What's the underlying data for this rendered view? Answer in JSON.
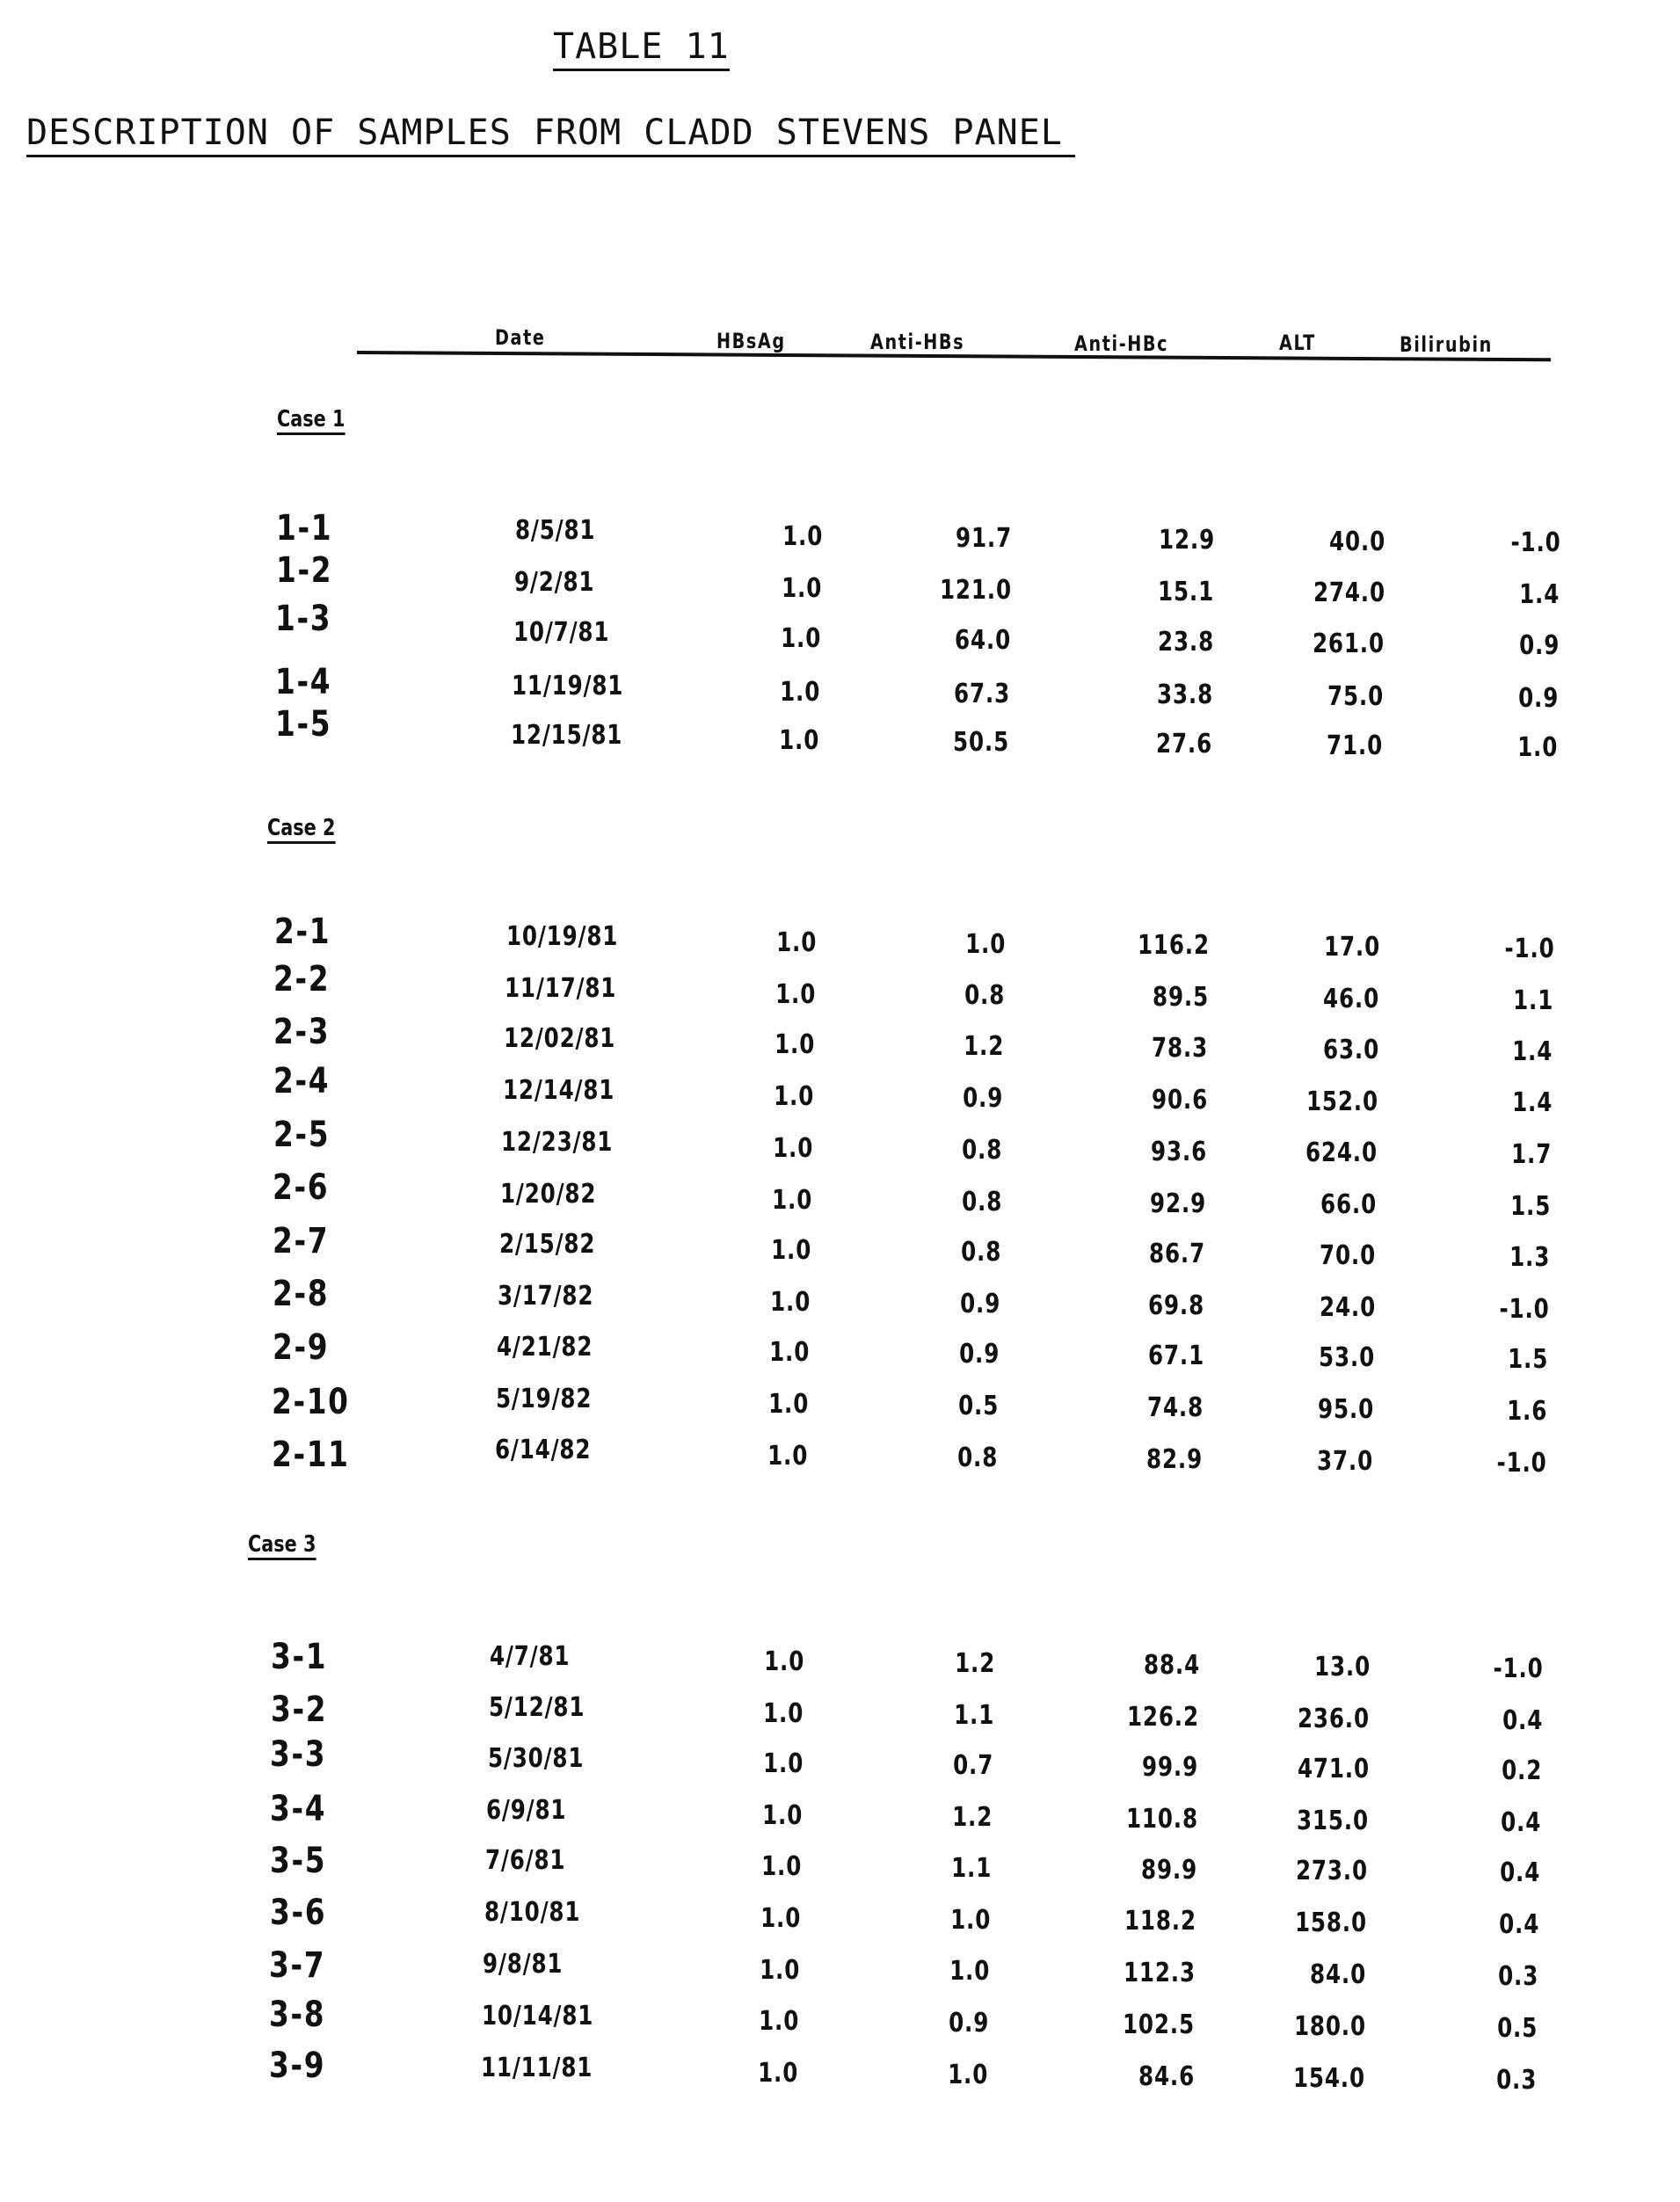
{
  "title": "TABLE 11",
  "subtitle": "DESCRIPTION OF SAMPLES FROM CLADD STEVENS PANEL",
  "columns": [
    "Date",
    "HBsAg",
    "Anti-HBs",
    "Anti-HBc",
    "ALT",
    "Bilirubin"
  ],
  "cases": [
    {
      "label": "Case 1",
      "rows": [
        {
          "id": "1-1",
          "date": "8/5/81",
          "hbsag": "1.0",
          "anti_hbs": "91.7",
          "anti_hbc": "12.9",
          "alt": "40.0",
          "bilirubin": "-1.0"
        },
        {
          "id": "1-2",
          "date": "9/2/81",
          "hbsag": "1.0",
          "anti_hbs": "121.0",
          "anti_hbc": "15.1",
          "alt": "274.0",
          "bilirubin": "1.4"
        },
        {
          "id": "1-3",
          "date": "10/7/81",
          "hbsag": "1.0",
          "anti_hbs": "64.0",
          "anti_hbc": "23.8",
          "alt": "261.0",
          "bilirubin": "0.9"
        },
        {
          "id": "1-4",
          "date": "11/19/81",
          "hbsag": "1.0",
          "anti_hbs": "67.3",
          "anti_hbc": "33.8",
          "alt": "75.0",
          "bilirubin": "0.9"
        },
        {
          "id": "1-5",
          "date": "12/15/81",
          "hbsag": "1.0",
          "anti_hbs": "50.5",
          "anti_hbc": "27.6",
          "alt": "71.0",
          "bilirubin": "1.0"
        }
      ]
    },
    {
      "label": "Case 2",
      "rows": [
        {
          "id": "2-1",
          "date": "10/19/81",
          "hbsag": "1.0",
          "anti_hbs": "1.0",
          "anti_hbc": "116.2",
          "alt": "17.0",
          "bilirubin": "-1.0"
        },
        {
          "id": "2-2",
          "date": "11/17/81",
          "hbsag": "1.0",
          "anti_hbs": "0.8",
          "anti_hbc": "89.5",
          "alt": "46.0",
          "bilirubin": "1.1"
        },
        {
          "id": "2-3",
          "date": "12/02/81",
          "hbsag": "1.0",
          "anti_hbs": "1.2",
          "anti_hbc": "78.3",
          "alt": "63.0",
          "bilirubin": "1.4"
        },
        {
          "id": "2-4",
          "date": "12/14/81",
          "hbsag": "1.0",
          "anti_hbs": "0.9",
          "anti_hbc": "90.6",
          "alt": "152.0",
          "bilirubin": "1.4"
        },
        {
          "id": "2-5",
          "date": "12/23/81",
          "hbsag": "1.0",
          "anti_hbs": "0.8",
          "anti_hbc": "93.6",
          "alt": "624.0",
          "bilirubin": "1.7"
        },
        {
          "id": "2-6",
          "date": "1/20/82",
          "hbsag": "1.0",
          "anti_hbs": "0.8",
          "anti_hbc": "92.9",
          "alt": "66.0",
          "bilirubin": "1.5"
        },
        {
          "id": "2-7",
          "date": "2/15/82",
          "hbsag": "1.0",
          "anti_hbs": "0.8",
          "anti_hbc": "86.7",
          "alt": "70.0",
          "bilirubin": "1.3"
        },
        {
          "id": "2-8",
          "date": "3/17/82",
          "hbsag": "1.0",
          "anti_hbs": "0.9",
          "anti_hbc": "69.8",
          "alt": "24.0",
          "bilirubin": "-1.0"
        },
        {
          "id": "2-9",
          "date": "4/21/82",
          "hbsag": "1.0",
          "anti_hbs": "0.9",
          "anti_hbc": "67.1",
          "alt": "53.0",
          "bilirubin": "1.5"
        },
        {
          "id": "2-10",
          "date": "5/19/82",
          "hbsag": "1.0",
          "anti_hbs": "0.5",
          "anti_hbc": "74.8",
          "alt": "95.0",
          "bilirubin": "1.6"
        },
        {
          "id": "2-11",
          "date": "6/14/82",
          "hbsag": "1.0",
          "anti_hbs": "0.8",
          "anti_hbc": "82.9",
          "alt": "37.0",
          "bilirubin": "-1.0"
        }
      ]
    },
    {
      "label": "Case 3",
      "rows": [
        {
          "id": "3-1",
          "date": "4/7/81",
          "hbsag": "1.0",
          "anti_hbs": "1.2",
          "anti_hbc": "88.4",
          "alt": "13.0",
          "bilirubin": "-1.0"
        },
        {
          "id": "3-2",
          "date": "5/12/81",
          "hbsag": "1.0",
          "anti_hbs": "1.1",
          "anti_hbc": "126.2",
          "alt": "236.0",
          "bilirubin": "0.4"
        },
        {
          "id": "3-3",
          "date": "5/30/81",
          "hbsag": "1.0",
          "anti_hbs": "0.7",
          "anti_hbc": "99.9",
          "alt": "471.0",
          "bilirubin": "0.2"
        },
        {
          "id": "3-4",
          "date": "6/9/81",
          "hbsag": "1.0",
          "anti_hbs": "1.2",
          "anti_hbc": "110.8",
          "alt": "315.0",
          "bilirubin": "0.4"
        },
        {
          "id": "3-5",
          "date": "7/6/81",
          "hbsag": "1.0",
          "anti_hbs": "1.1",
          "anti_hbc": "89.9",
          "alt": "273.0",
          "bilirubin": "0.4"
        },
        {
          "id": "3-6",
          "date": "8/10/81",
          "hbsag": "1.0",
          "anti_hbs": "1.0",
          "anti_hbc": "118.2",
          "alt": "158.0",
          "bilirubin": "0.4"
        },
        {
          "id": "3-7",
          "date": "9/8/81",
          "hbsag": "1.0",
          "anti_hbs": "1.0",
          "anti_hbc": "112.3",
          "alt": "84.0",
          "bilirubin": "0.3"
        },
        {
          "id": "3-8",
          "date": "10/14/81",
          "hbsag": "1.0",
          "anti_hbs": "0.9",
          "anti_hbc": "102.5",
          "alt": "180.0",
          "bilirubin": "0.5"
        },
        {
          "id": "3-9",
          "date": "11/11/81",
          "hbsag": "1.0",
          "anti_hbs": "1.0",
          "anti_hbc": "84.6",
          "alt": "154.0",
          "bilirubin": "0.3"
        }
      ]
    }
  ]
}
